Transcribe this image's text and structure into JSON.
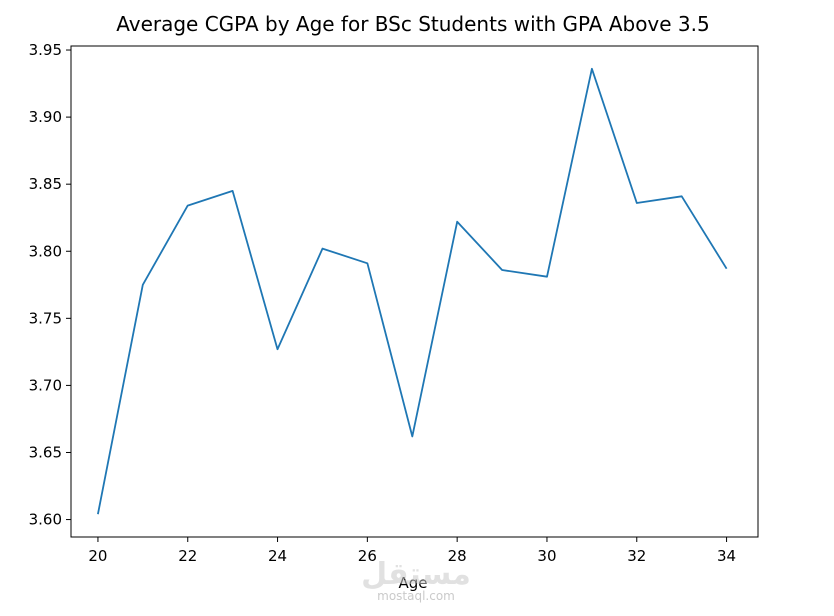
{
  "chart_data": {
    "type": "line",
    "title": "Average CGPA by Age for BSc Students with GPA Above 3.5",
    "xlabel": "Age",
    "ylabel": "",
    "x": [
      20,
      21,
      22,
      23,
      24,
      25,
      26,
      27,
      28,
      29,
      30,
      31,
      32,
      33,
      34
    ],
    "series": [
      {
        "values": [
          3.604,
          3.775,
          3.834,
          3.845,
          3.727,
          3.802,
          3.791,
          3.662,
          3.822,
          3.786,
          3.781,
          3.936,
          3.836,
          3.841,
          3.787
        ],
        "color": "#1f77b4"
      }
    ],
    "xlim": [
      19.4,
      34.7
    ],
    "ylim": [
      3.587,
      3.953
    ],
    "xticks": [
      20,
      22,
      24,
      26,
      28,
      30,
      32,
      34
    ],
    "yticks": [
      3.6,
      3.65,
      3.7,
      3.75,
      3.8,
      3.85,
      3.9,
      3.95
    ],
    "xtick_labels": [
      "20",
      "22",
      "24",
      "26",
      "28",
      "30",
      "32",
      "34"
    ],
    "ytick_labels": [
      "3.60",
      "3.65",
      "3.70",
      "3.75",
      "3.80",
      "3.85",
      "3.90",
      "3.95"
    ],
    "grid": false,
    "legend": "none"
  },
  "watermark": {
    "arabic": "مستقل",
    "latin": "mostaql.com"
  }
}
